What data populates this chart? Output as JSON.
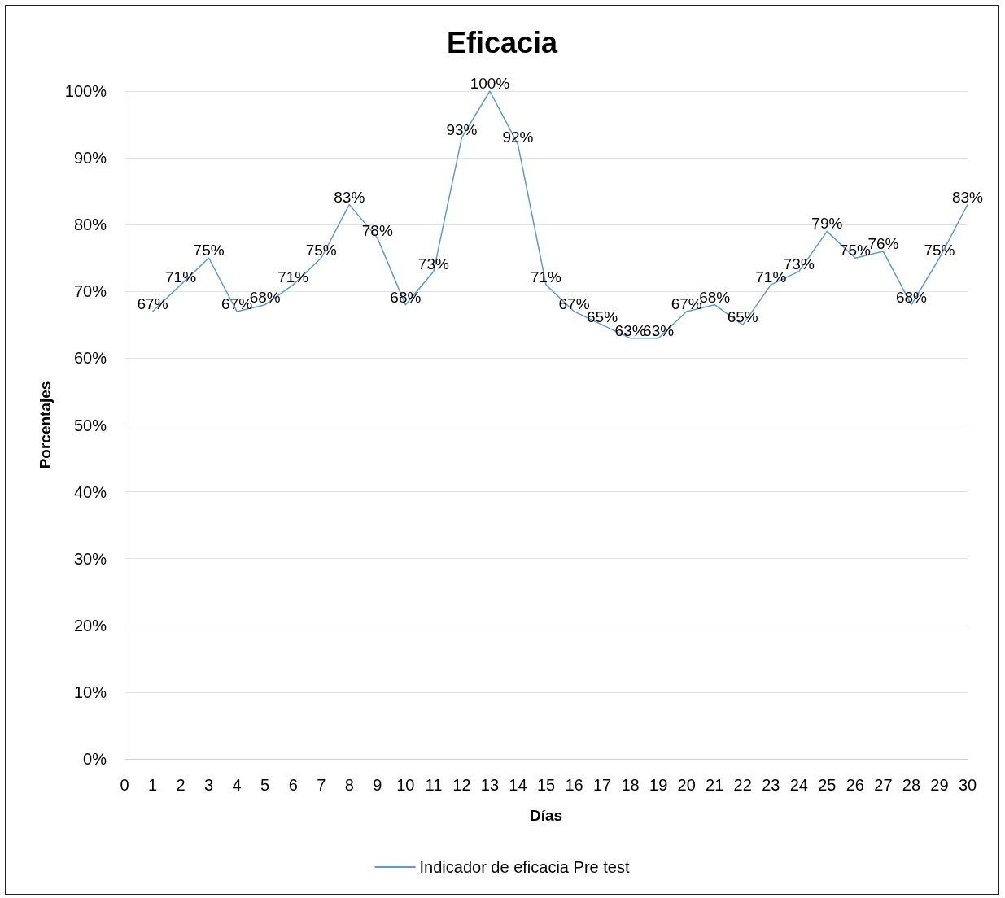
{
  "chart_data": {
    "type": "line",
    "title": "Eficacia",
    "xlabel": "Días",
    "ylabel": "Porcentajes",
    "x": [
      1,
      2,
      3,
      4,
      5,
      6,
      7,
      8,
      9,
      10,
      11,
      12,
      13,
      14,
      15,
      16,
      17,
      18,
      19,
      20,
      21,
      22,
      23,
      24,
      25,
      26,
      27,
      28,
      29,
      30
    ],
    "series": [
      {
        "name": "Indicador de eficacia Pre test",
        "color": "#5b9bd5",
        "values": [
          67,
          71,
          75,
          67,
          68,
          71,
          75,
          83,
          78,
          68,
          73,
          93,
          100,
          92,
          71,
          67,
          65,
          63,
          63,
          67,
          68,
          65,
          71,
          73,
          79,
          75,
          76,
          68,
          75,
          83
        ],
        "value_labels": [
          "67%",
          "71%",
          "75%",
          "67%",
          "68%",
          "71%",
          "75%",
          "83%",
          "78%",
          "68%",
          "73%",
          "93%",
          "100%",
          "92%",
          "71%",
          "67%",
          "65%",
          "63%",
          "63%",
          "67%",
          "68%",
          "65%",
          "71%",
          "73%",
          "79%",
          "75%",
          "76%",
          "68%",
          "75%",
          "83%"
        ]
      }
    ],
    "xlim": [
      0,
      30
    ],
    "xticks": [
      0,
      1,
      2,
      3,
      4,
      5,
      6,
      7,
      8,
      9,
      10,
      11,
      12,
      13,
      14,
      15,
      16,
      17,
      18,
      19,
      20,
      21,
      22,
      23,
      24,
      25,
      26,
      27,
      28,
      29,
      30
    ],
    "ylim": [
      0,
      100
    ],
    "yticks": [
      {
        "value": 0,
        "label": "0%"
      },
      {
        "value": 10,
        "label": "10%"
      },
      {
        "value": 20,
        "label": "20%"
      },
      {
        "value": 30,
        "label": "30%"
      },
      {
        "value": 40,
        "label": "40%"
      },
      {
        "value": 50,
        "label": "50%"
      },
      {
        "value": 60,
        "label": "60%"
      },
      {
        "value": 70,
        "label": "70%"
      },
      {
        "value": 80,
        "label": "80%"
      },
      {
        "value": 90,
        "label": "90%"
      },
      {
        "value": 100,
        "label": "100%"
      }
    ],
    "grid": "y",
    "legend": "bottom",
    "marker": "none",
    "line_style": "solid"
  }
}
